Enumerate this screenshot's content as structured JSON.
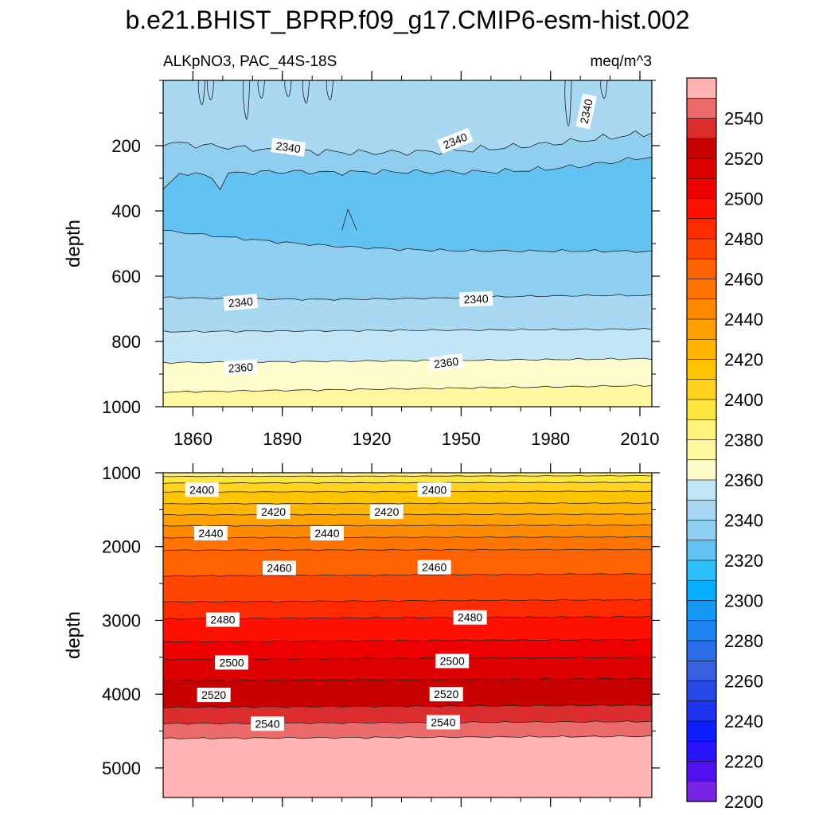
{
  "title": "b.e21.BHIST_BPRP.f09_g17.CMIP6-esm-hist.002",
  "chart_data": [
    {
      "type": "heatmap",
      "subtitle_left": "ALKpNO3, PAC_44S-18S",
      "subtitle_right": "meq/m^3",
      "ylabel": "depth",
      "xlim": [
        1850,
        2014
      ],
      "ylim": [
        1000,
        0
      ],
      "x_ticks": [
        "1860",
        "1890",
        "1920",
        "1950",
        "1980",
        "2010"
      ],
      "y_ticks": [
        "200",
        "400",
        "600",
        "800",
        "1000"
      ],
      "y_tick_values": [
        200,
        400,
        600,
        800,
        1000
      ],
      "contour_labels": [
        {
          "text": "2340",
          "year": 1892,
          "depth": 205,
          "rot": 8
        },
        {
          "text": "2340",
          "year": 1948,
          "depth": 185,
          "rot": -22
        },
        {
          "text": "2340",
          "year": 1992,
          "depth": 95,
          "rot": -78
        },
        {
          "text": "2340",
          "year": 1876,
          "depth": 680,
          "rot": -5
        },
        {
          "text": "2340",
          "year": 1955,
          "depth": 670,
          "rot": -2
        },
        {
          "text": "2360",
          "year": 1876,
          "depth": 880,
          "rot": -4
        },
        {
          "text": "2360",
          "year": 1945,
          "depth": 865,
          "rot": -7
        }
      ]
    },
    {
      "type": "heatmap",
      "ylabel": "depth",
      "xlim": [
        1850,
        2014
      ],
      "ylim": [
        5400,
        1000
      ],
      "y_ticks": [
        "1000",
        "2000",
        "3000",
        "4000",
        "5000"
      ],
      "y_tick_values": [
        1000,
        2000,
        3000,
        4000,
        5000
      ],
      "contour_labels": [
        {
          "text": "2400",
          "year": 1863,
          "depth": 1230
        },
        {
          "text": "2400",
          "year": 1941,
          "depth": 1230
        },
        {
          "text": "2420",
          "year": 1887,
          "depth": 1530
        },
        {
          "text": "2420",
          "year": 1925,
          "depth": 1530
        },
        {
          "text": "2440",
          "year": 1866,
          "depth": 1820
        },
        {
          "text": "2440",
          "year": 1905,
          "depth": 1820
        },
        {
          "text": "2460",
          "year": 1889,
          "depth": 2290
        },
        {
          "text": "2460",
          "year": 1941,
          "depth": 2280
        },
        {
          "text": "2480",
          "year": 1870,
          "depth": 2990
        },
        {
          "text": "2480",
          "year": 1953,
          "depth": 2960
        },
        {
          "text": "2500",
          "year": 1873,
          "depth": 3570
        },
        {
          "text": "2500",
          "year": 1947,
          "depth": 3550
        },
        {
          "text": "2520",
          "year": 1867,
          "depth": 4010
        },
        {
          "text": "2520",
          "year": 1945,
          "depth": 4000
        },
        {
          "text": "2540",
          "year": 1885,
          "depth": 4400
        },
        {
          "text": "2540",
          "year": 1944,
          "depth": 4380
        }
      ]
    }
  ],
  "colorbar": {
    "labels": [
      "2540",
      "2520",
      "2500",
      "2480",
      "2460",
      "2440",
      "2420",
      "2400",
      "2380",
      "2360",
      "2340",
      "2320",
      "2300",
      "2280",
      "2260",
      "2240",
      "2220",
      "2200"
    ],
    "label_values": [
      2540,
      2520,
      2500,
      2480,
      2460,
      2440,
      2420,
      2400,
      2380,
      2360,
      2340,
      2320,
      2300,
      2280,
      2260,
      2240,
      2220,
      2200
    ],
    "colors_top_to_bottom": [
      "#ffb3b3",
      "#eb6b6b",
      "#dc2e2e",
      "#c80000",
      "#dc0000",
      "#f00000",
      "#ff1000",
      "#ff2a00",
      "#ff4600",
      "#ff6200",
      "#ff7400",
      "#ff8a00",
      "#ffa000",
      "#ffb400",
      "#ffc400",
      "#ffd21e",
      "#ffe63c",
      "#fff27a",
      "#fff7a0",
      "#fffccc",
      "#c2e6f6",
      "#a8d8f2",
      "#90cef0",
      "#62c3f3",
      "#2dbffa",
      "#07acfa",
      "#1498f5",
      "#1e82f0",
      "#2a6ee8",
      "#3a60e0",
      "#2848e6",
      "#1e34f0",
      "#0a1eff",
      "#2814ff",
      "#5010f0",
      "#7a22e8"
    ]
  }
}
